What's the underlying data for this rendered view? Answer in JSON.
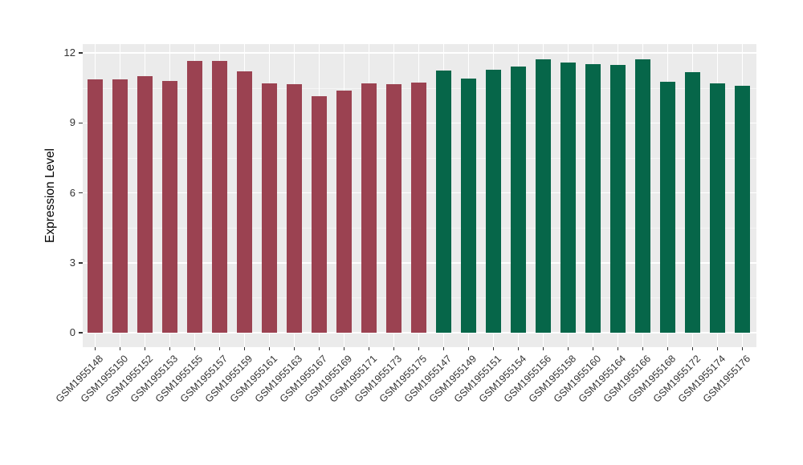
{
  "chart_data": {
    "type": "bar",
    "title": "",
    "xlabel": "",
    "ylabel": "Expression Level",
    "ylim": [
      0,
      12
    ],
    "yticks": [
      0,
      3,
      6,
      9,
      12
    ],
    "yticks_minor": [
      1.5,
      4.5,
      7.5,
      10.5
    ],
    "grid": true,
    "legend": "none",
    "panel_bg": "#EBEBEB",
    "grid_major_color": "#FFFFFF",
    "grid_minor_color": "#F5F5F5",
    "tick_color": "#333333",
    "categories": [
      "GSM1955148",
      "GSM1955150",
      "GSM1955152",
      "GSM1955153",
      "GSM1955155",
      "GSM1955157",
      "GSM1955159",
      "GSM1955161",
      "GSM1955163",
      "GSM1955167",
      "GSM1955169",
      "GSM1955171",
      "GSM1955173",
      "GSM1955175",
      "GSM1955147",
      "GSM1955149",
      "GSM1955151",
      "GSM1955154",
      "GSM1955156",
      "GSM1955158",
      "GSM1955160",
      "GSM1955164",
      "GSM1955166",
      "GSM1955168",
      "GSM1955172",
      "GSM1955174",
      "GSM1955176"
    ],
    "values": [
      10.85,
      10.85,
      11.02,
      10.8,
      11.66,
      11.66,
      11.22,
      10.69,
      10.67,
      10.16,
      10.37,
      10.71,
      10.66,
      10.73,
      11.23,
      10.91,
      11.28,
      11.41,
      11.72,
      11.6,
      11.52,
      11.48,
      11.72,
      10.76,
      11.16,
      10.68,
      10.59
    ],
    "groups": [
      "group1",
      "group1",
      "group1",
      "group1",
      "group1",
      "group1",
      "group1",
      "group1",
      "group1",
      "group1",
      "group1",
      "group1",
      "group1",
      "group1",
      "group2",
      "group2",
      "group2",
      "group2",
      "group2",
      "group2",
      "group2",
      "group2",
      "group2",
      "group2",
      "group2",
      "group2",
      "group2"
    ],
    "group_colors": {
      "group1": "#9B4251",
      "group2": "#066649"
    }
  }
}
